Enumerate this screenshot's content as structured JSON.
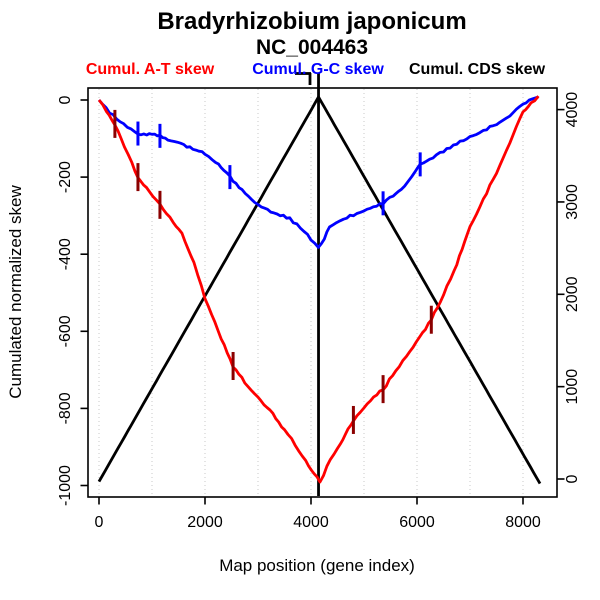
{
  "chart_data": {
    "type": "line",
    "title": "Bradyrhizobium japonicum",
    "subtitle": "NC_004463",
    "xlabel": "Map position (gene index)",
    "ylabel": "Cumulated normalized skew",
    "x_ticks": [
      0,
      2000,
      4000,
      6000,
      8000
    ],
    "x_gridlines": [
      0,
      1000,
      2000,
      3000,
      4000,
      5000,
      6000,
      7000,
      8000
    ],
    "y_left_ticks": [
      0,
      -200,
      -400,
      -600,
      -800,
      -1000
    ],
    "y_right_ticks": [
      0,
      1000,
      2000,
      3000,
      4000
    ],
    "xlim": [
      0,
      8320
    ],
    "ylim_left": [
      -1000,
      0
    ],
    "ylim_right": [
      0,
      4000
    ],
    "grid": "on",
    "grid_color": "#c8c8c8",
    "terminus_line_x": 4142,
    "series": [
      {
        "name": "Cumul. A-T skew",
        "color": "#ff0000",
        "axis": "left",
        "mark_color": "#8b0000",
        "noise": 1.3,
        "points": [
          [
            0,
            0
          ],
          [
            140,
            -30
          ],
          [
            300,
            -62
          ],
          [
            480,
            -120
          ],
          [
            620,
            -165
          ],
          [
            735,
            -200
          ],
          [
            950,
            -240
          ],
          [
            1150,
            -272
          ],
          [
            1400,
            -315
          ],
          [
            1566,
            -345
          ],
          [
            1792,
            -421
          ],
          [
            2000,
            -512
          ],
          [
            2250,
            -600
          ],
          [
            2530,
            -690
          ],
          [
            2750,
            -733
          ],
          [
            3000,
            -772
          ],
          [
            3226,
            -805
          ],
          [
            3500,
            -855
          ],
          [
            3700,
            -893
          ],
          [
            3900,
            -938
          ],
          [
            4060,
            -968
          ],
          [
            4170,
            -990
          ],
          [
            4300,
            -952
          ],
          [
            4500,
            -903
          ],
          [
            4650,
            -866
          ],
          [
            4800,
            -830
          ],
          [
            5000,
            -799
          ],
          [
            5180,
            -772
          ],
          [
            5360,
            -750
          ],
          [
            5600,
            -704
          ],
          [
            5800,
            -664
          ],
          [
            6050,
            -614
          ],
          [
            6270,
            -570
          ],
          [
            6500,
            -504
          ],
          [
            6700,
            -444
          ],
          [
            6850,
            -388
          ],
          [
            7000,
            -330
          ],
          [
            7250,
            -257
          ],
          [
            7500,
            -188
          ],
          [
            7750,
            -110
          ],
          [
            8000,
            -30
          ],
          [
            8150,
            -8
          ],
          [
            8290,
            10
          ]
        ],
        "marks": [
          [
            300,
            -62
          ],
          [
            735,
            -200
          ],
          [
            1150,
            -272
          ],
          [
            2530,
            -690
          ],
          [
            4800,
            -830
          ],
          [
            5360,
            -750
          ],
          [
            6270,
            -570
          ]
        ]
      },
      {
        "name": "Cumul. G-C skew",
        "color": "#0000ff",
        "axis": "left",
        "mark_color": "#0000ff",
        "noise": 1.1,
        "points": [
          [
            0,
            0
          ],
          [
            200,
            -32
          ],
          [
            400,
            -58
          ],
          [
            600,
            -76
          ],
          [
            735,
            -87
          ],
          [
            900,
            -89
          ],
          [
            1050,
            -91
          ],
          [
            1150,
            -93
          ],
          [
            1300,
            -102
          ],
          [
            1600,
            -118
          ],
          [
            2000,
            -138
          ],
          [
            2200,
            -161
          ],
          [
            2470,
            -200
          ],
          [
            2700,
            -233
          ],
          [
            3000,
            -272
          ],
          [
            3300,
            -292
          ],
          [
            3600,
            -308
          ],
          [
            3800,
            -331
          ],
          [
            4000,
            -361
          ],
          [
            4140,
            -385
          ],
          [
            4250,
            -358
          ],
          [
            4350,
            -330
          ],
          [
            4550,
            -311
          ],
          [
            4800,
            -298
          ],
          [
            5000,
            -288
          ],
          [
            5180,
            -278
          ],
          [
            5360,
            -268
          ],
          [
            5550,
            -249
          ],
          [
            5700,
            -235
          ],
          [
            5900,
            -199
          ],
          [
            6060,
            -167
          ],
          [
            6300,
            -148
          ],
          [
            6500,
            -133
          ],
          [
            6750,
            -113
          ],
          [
            7000,
            -96
          ],
          [
            7250,
            -79
          ],
          [
            7500,
            -62
          ],
          [
            7750,
            -40
          ],
          [
            8000,
            -10
          ],
          [
            8290,
            8
          ]
        ],
        "marks": [
          [
            735,
            -87
          ],
          [
            1150,
            -93
          ],
          [
            2470,
            -200
          ],
          [
            5360,
            -268
          ],
          [
            6060,
            -167
          ]
        ]
      },
      {
        "name": "Cumul. CDS skew",
        "color": "#000000",
        "axis": "right",
        "mark_color": "#000000",
        "noise": 0,
        "points": [
          [
            0,
            -28
          ],
          [
            4142,
            4136
          ],
          [
            8320,
            -50
          ]
        ],
        "marks": []
      }
    ]
  }
}
